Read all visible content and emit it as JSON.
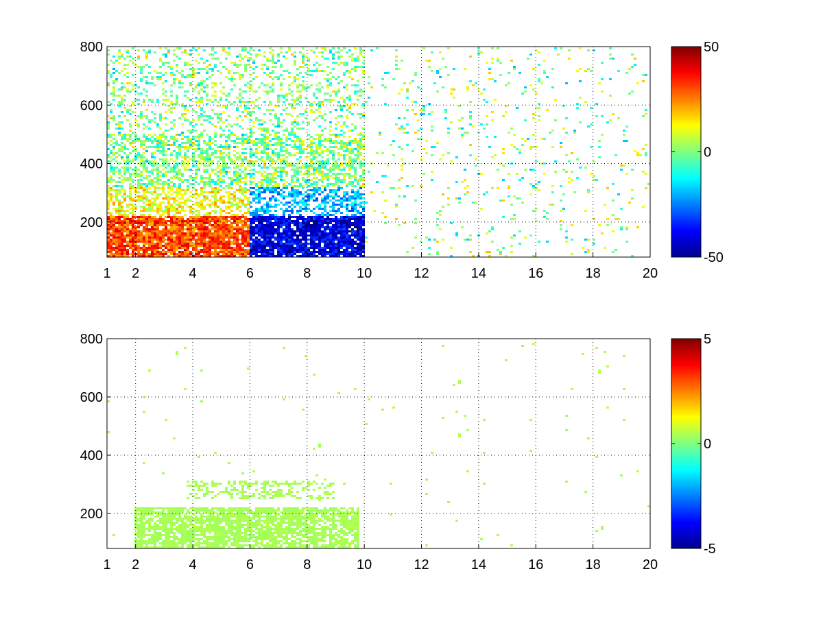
{
  "chart_data": [
    {
      "type": "heatmap",
      "title": "",
      "xlabel": "",
      "ylabel": "",
      "xlim": [
        1,
        20
      ],
      "ylim": [
        80,
        800
      ],
      "x_ticks": [
        1,
        2,
        4,
        6,
        8,
        10,
        12,
        14,
        16,
        18,
        20
      ],
      "y_ticks": [
        200,
        400,
        600,
        800
      ],
      "grid": true,
      "colormap": "jet",
      "colorbar": {
        "min": -50,
        "max": 50,
        "ticks": [
          50,
          0,
          -50
        ]
      },
      "description_regions": [
        {
          "x": [
            2.2,
            3.4
          ],
          "y": [
            80,
            220
          ],
          "value": 30
        },
        {
          "x": [
            3.4,
            5.8
          ],
          "y": [
            80,
            140
          ],
          "value": 40
        },
        {
          "x": [
            6.5,
            9.5
          ],
          "y": [
            80,
            200
          ],
          "value": -45
        },
        {
          "x": [
            7.5,
            9.2
          ],
          "y": [
            220,
            320
          ],
          "value": -20
        },
        {
          "x": [
            2.5,
            4.5
          ],
          "y": [
            250,
            320
          ],
          "value": 15
        }
      ]
    },
    {
      "type": "heatmap",
      "title": "",
      "xlabel": "",
      "ylabel": "",
      "xlim": [
        1,
        20
      ],
      "ylim": [
        80,
        800
      ],
      "x_ticks": [
        1,
        2,
        4,
        6,
        8,
        10,
        12,
        14,
        16,
        18,
        20
      ],
      "y_ticks": [
        200,
        400,
        600,
        800
      ],
      "grid": true,
      "colormap": "jet",
      "colorbar": {
        "min": -5,
        "max": 5,
        "ticks": [
          5,
          0,
          -5
        ]
      },
      "description_regions": [
        {
          "x": [
            2.0,
            9.7
          ],
          "y": [
            80,
            220
          ],
          "value": 0.3
        },
        {
          "x": [
            4.0,
            9.0
          ],
          "y": [
            260,
            300
          ],
          "value": 0.3
        }
      ]
    }
  ]
}
